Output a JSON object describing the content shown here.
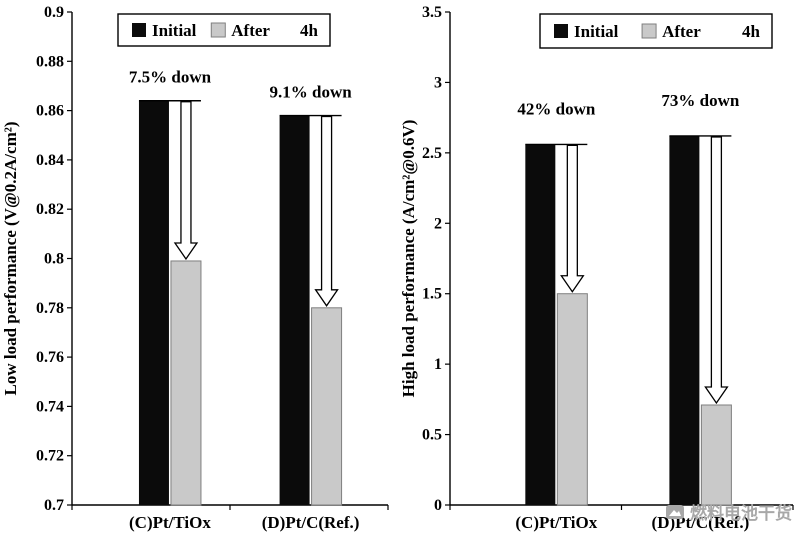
{
  "chart_data": [
    {
      "type": "bar",
      "title": "",
      "xlabel": "",
      "ylabel": "Low load performance (V@0.2A/cm²)",
      "categories": [
        "(C)Pt/TiOx",
        "(D)Pt/C(Ref.)"
      ],
      "series": [
        {
          "name": "Initial",
          "values": [
            0.864,
            0.858
          ]
        },
        {
          "name": "After 4h",
          "values": [
            0.799,
            0.78
          ]
        }
      ],
      "annotations": [
        "7.5% down",
        "9.1% down"
      ],
      "ylim": [
        0.7,
        0.9
      ],
      "yticks": [
        "0.7",
        "0.72",
        "0.74",
        "0.76",
        "0.78",
        "0.8",
        "0.82",
        "0.84",
        "0.86",
        "0.88",
        "0.9"
      ],
      "legend_labels": [
        "Initial",
        "After",
        "4h"
      ],
      "legend_position": "top",
      "grid": false
    },
    {
      "type": "bar",
      "title": "",
      "xlabel": "",
      "ylabel": "High load performance (A/cm²@0.6V)",
      "categories": [
        "(C)Pt/TiOx",
        "(D)Pt/C(Ref.)"
      ],
      "series": [
        {
          "name": "Initial",
          "values": [
            2.56,
            2.62
          ]
        },
        {
          "name": "After 4h",
          "values": [
            1.5,
            0.71
          ]
        }
      ],
      "annotations": [
        "42% down",
        "73% down"
      ],
      "ylim": [
        0,
        3.5
      ],
      "yticks": [
        "0",
        "0.5",
        "1",
        "1.5",
        "2",
        "2.5",
        "3",
        "3.5"
      ],
      "legend_labels": [
        "Initial",
        "After",
        "4h"
      ],
      "legend_position": "top",
      "grid": false
    }
  ],
  "colors": {
    "initial": "#0b0b0b",
    "after": "#c9c9c9",
    "after_border": "#7f7f7f",
    "watermark": "#a8a8a8"
  },
  "watermark": {
    "text": "燃料电池干货"
  }
}
